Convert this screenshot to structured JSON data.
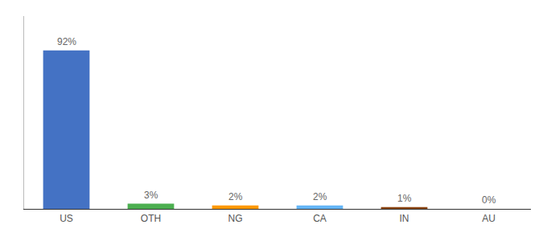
{
  "chart_data": {
    "type": "bar",
    "categories": [
      "US",
      "OTH",
      "NG",
      "CA",
      "IN",
      "AU"
    ],
    "values": [
      92,
      3,
      2,
      2,
      1,
      0
    ],
    "value_labels": [
      "92%",
      "3%",
      "2%",
      "2%",
      "1%",
      "0%"
    ],
    "data_labels": true,
    "colors": [
      "#4472c4",
      "#4caf50",
      "#ff9800",
      "#64b5f6",
      "#8b4513",
      "#b0bec5"
    ],
    "ylim": [
      0,
      112
    ],
    "grid": false,
    "tick_labels": "x"
  }
}
